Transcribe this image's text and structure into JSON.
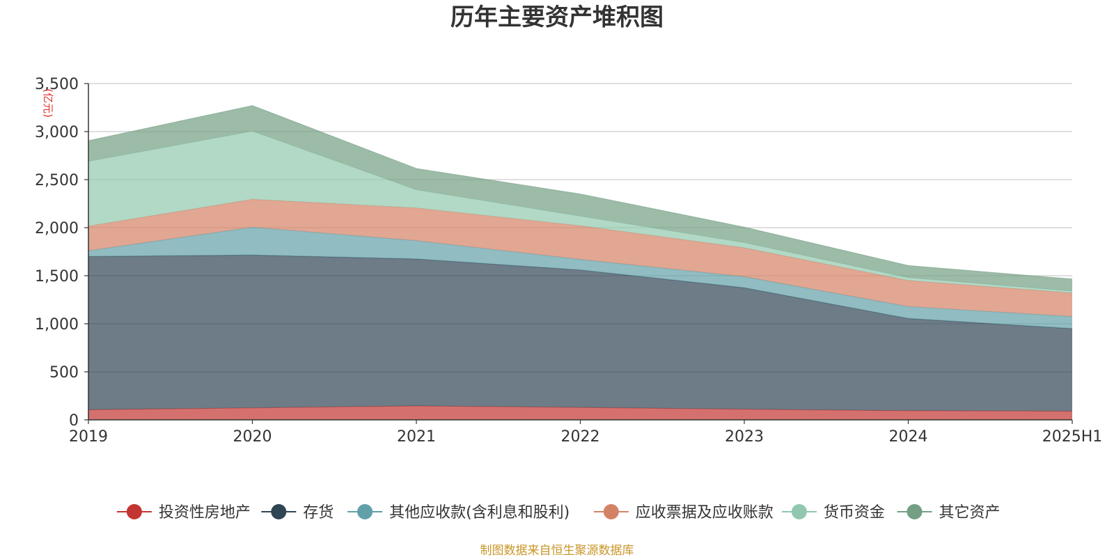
{
  "chart_data": {
    "type": "area",
    "stacked": true,
    "title": "历年主要资产堆积图",
    "ylabel": "(亿元)",
    "xlabel": "",
    "ylim": [
      0,
      3500
    ],
    "yticks": [
      0,
      500,
      1000,
      1500,
      2000,
      2500,
      3000,
      3500
    ],
    "ytick_labels": [
      "0",
      "500",
      "1,000",
      "1,500",
      "2,000",
      "2,500",
      "3,000",
      "3,500"
    ],
    "categories": [
      "2019",
      "2020",
      "2021",
      "2022",
      "2023",
      "2024",
      "2025H1"
    ],
    "grid": true,
    "legend_position": "bottom",
    "series": [
      {
        "name": "投资性房地产",
        "color": "#c23531",
        "values": [
          105,
          125,
          145,
          130,
          110,
          95,
          90
        ]
      },
      {
        "name": "存货",
        "color": "#2f4554",
        "values": [
          1595,
          1590,
          1530,
          1430,
          1265,
          960,
          860
        ]
      },
      {
        "name": "其他应收款(含利息和股利)",
        "color": "#61a0a8",
        "values": [
          60,
          290,
          190,
          110,
          115,
          125,
          125
        ]
      },
      {
        "name": "应收票据及应收账款",
        "color": "#d48265",
        "values": [
          255,
          290,
          340,
          350,
          300,
          270,
          245
        ]
      },
      {
        "name": "货币资金",
        "color": "#91c7ae",
        "values": [
          675,
          710,
          190,
          100,
          55,
          30,
          20
        ]
      },
      {
        "name": "其它资产",
        "color": "#749f83",
        "values": [
          215,
          265,
          220,
          230,
          160,
          125,
          125
        ]
      }
    ]
  },
  "source_note": "制图数据来自恒生聚源数据库"
}
